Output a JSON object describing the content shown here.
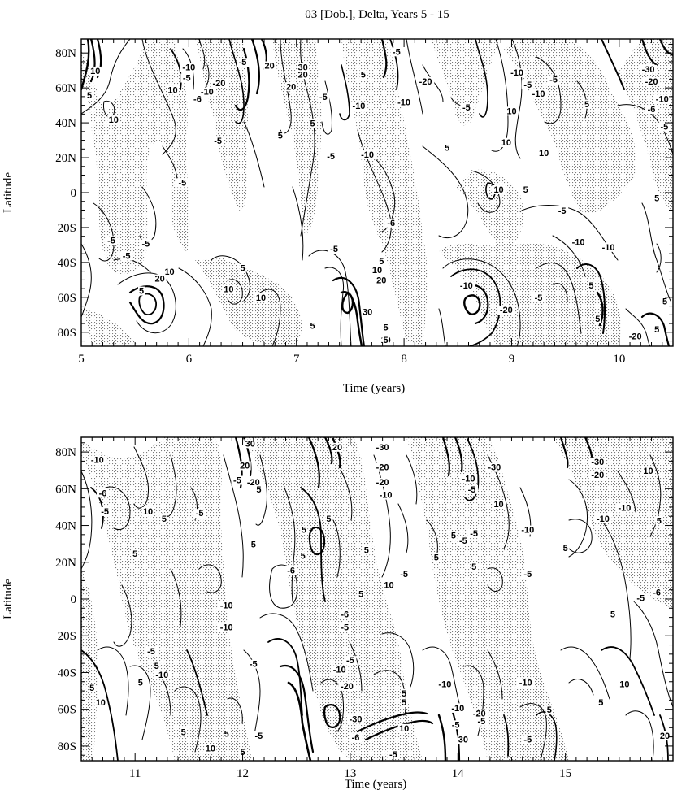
{
  "title": "03 [Dob.], Delta, Years 5 - 15",
  "colors": {
    "ink": "#000000",
    "stipple": "#9a9a9a",
    "background": "#ffffff"
  },
  "chart_data": [
    {
      "type": "contour",
      "xlabel": "Time (years)",
      "ylabel": "Latitude",
      "xlim": [
        5,
        10.5
      ],
      "ylim": [
        -88,
        88
      ],
      "x_ticks": [
        {
          "value": 5,
          "label": "5"
        },
        {
          "value": 6,
          "label": "6"
        },
        {
          "value": 7,
          "label": "7"
        },
        {
          "value": 8,
          "label": "8"
        },
        {
          "value": 9,
          "label": "9"
        },
        {
          "value": 10,
          "label": "10"
        }
      ],
      "y_ticks": [
        {
          "value": 80,
          "label": "80N"
        },
        {
          "value": 60,
          "label": "60N"
        },
        {
          "value": 40,
          "label": "40N"
        },
        {
          "value": 20,
          "label": "20N"
        },
        {
          "value": 0,
          "label": "0"
        },
        {
          "value": -20,
          "label": "20S"
        },
        {
          "value": -40,
          "label": "40S"
        },
        {
          "value": -60,
          "label": "60S"
        },
        {
          "value": -80,
          "label": "80S"
        }
      ],
      "contour_levels": [
        -30,
        -20,
        -10,
        -5,
        5,
        10,
        20,
        30
      ],
      "shading": "stippled where negative",
      "contour_labels": [
        {
          "x": 5.13,
          "y": 68,
          "label": "10"
        },
        {
          "x": 5.06,
          "y": 54,
          "label": "5"
        },
        {
          "x": 5.3,
          "y": 40,
          "label": "10"
        },
        {
          "x": 6.0,
          "y": 70,
          "label": "-10"
        },
        {
          "x": 5.98,
          "y": 64,
          "label": "-5"
        },
        {
          "x": 6.28,
          "y": 61,
          "label": "-20"
        },
        {
          "x": 6.17,
          "y": 56,
          "label": "-10"
        },
        {
          "x": 6.08,
          "y": 52,
          "label": "-6"
        },
        {
          "x": 5.85,
          "y": 57,
          "label": "10"
        },
        {
          "x": 6.5,
          "y": 73,
          "label": "-5"
        },
        {
          "x": 6.75,
          "y": 71,
          "label": "20"
        },
        {
          "x": 7.06,
          "y": 70,
          "label": "30"
        },
        {
          "x": 7.06,
          "y": 66,
          "label": "20"
        },
        {
          "x": 6.95,
          "y": 59,
          "label": "20"
        },
        {
          "x": 7.25,
          "y": 53,
          "label": "-5"
        },
        {
          "x": 7.15,
          "y": 38,
          "label": "5"
        },
        {
          "x": 7.62,
          "y": 66,
          "label": "5"
        },
        {
          "x": 7.58,
          "y": 48,
          "label": "-10"
        },
        {
          "x": 7.93,
          "y": 79,
          "label": "-5"
        },
        {
          "x": 8.2,
          "y": 62,
          "label": "-20"
        },
        {
          "x": 8.58,
          "y": 47,
          "label": "-5"
        },
        {
          "x": 8.0,
          "y": 50,
          "label": "-10"
        },
        {
          "x": 6.27,
          "y": 28,
          "label": "-5"
        },
        {
          "x": 6.85,
          "y": 31,
          "label": "5"
        },
        {
          "x": 7.32,
          "y": 19,
          "label": "-5"
        },
        {
          "x": 7.66,
          "y": 20,
          "label": "-10"
        },
        {
          "x": 5.94,
          "y": 4,
          "label": "-5"
        },
        {
          "x": 9.05,
          "y": 67,
          "label": "-10"
        },
        {
          "x": 9.15,
          "y": 60,
          "label": "-5"
        },
        {
          "x": 9.39,
          "y": 63,
          "label": "-5"
        },
        {
          "x": 9.25,
          "y": 55,
          "label": "-10"
        },
        {
          "x": 9.0,
          "y": 45,
          "label": "10"
        },
        {
          "x": 8.95,
          "y": 27,
          "label": "10"
        },
        {
          "x": 9.3,
          "y": 21,
          "label": "10"
        },
        {
          "x": 9.7,
          "y": 49,
          "label": "5"
        },
        {
          "x": 10.27,
          "y": 69,
          "label": "-30"
        },
        {
          "x": 10.3,
          "y": 62,
          "label": "-20"
        },
        {
          "x": 10.4,
          "y": 52,
          "label": "-10"
        },
        {
          "x": 10.3,
          "y": 46,
          "label": "-6"
        },
        {
          "x": 10.42,
          "y": 36,
          "label": "-5"
        },
        {
          "x": 8.4,
          "y": 24,
          "label": "5"
        },
        {
          "x": 8.88,
          "y": 0,
          "label": "10"
        },
        {
          "x": 9.13,
          "y": 0,
          "label": "5"
        },
        {
          "x": 9.47,
          "y": -12,
          "label": "-5"
        },
        {
          "x": 9.62,
          "y": -30,
          "label": "-10"
        },
        {
          "x": 9.9,
          "y": -33,
          "label": "-10"
        },
        {
          "x": 10.35,
          "y": -5,
          "label": "5"
        },
        {
          "x": 5.28,
          "y": -29,
          "label": "-5"
        },
        {
          "x": 5.6,
          "y": -31,
          "label": "-5"
        },
        {
          "x": 5.42,
          "y": -38,
          "label": "-5"
        },
        {
          "x": 7.35,
          "y": -34,
          "label": "-5"
        },
        {
          "x": 7.88,
          "y": -19,
          "label": "-6"
        },
        {
          "x": 5.82,
          "y": -47,
          "label": "10"
        },
        {
          "x": 5.73,
          "y": -51,
          "label": "20"
        },
        {
          "x": 5.56,
          "y": -58,
          "label": "5"
        },
        {
          "x": 6.5,
          "y": -45,
          "label": "5"
        },
        {
          "x": 6.37,
          "y": -57,
          "label": "10"
        },
        {
          "x": 6.67,
          "y": -62,
          "label": "10"
        },
        {
          "x": 7.79,
          "y": -41,
          "label": "5"
        },
        {
          "x": 7.75,
          "y": -46,
          "label": "10"
        },
        {
          "x": 7.79,
          "y": -52,
          "label": "20"
        },
        {
          "x": 7.66,
          "y": -70,
          "label": "30"
        },
        {
          "x": 7.15,
          "y": -78,
          "label": "5"
        },
        {
          "x": 7.83,
          "y": -79,
          "label": "5"
        },
        {
          "x": 7.83,
          "y": -87,
          "label": "10"
        },
        {
          "x": 7.83,
          "y": -93,
          "label": "5"
        },
        {
          "x": 8.58,
          "y": -55,
          "label": "-10"
        },
        {
          "x": 8.95,
          "y": -69,
          "label": "-20"
        },
        {
          "x": 9.25,
          "y": -62,
          "label": "-5"
        },
        {
          "x": 9.74,
          "y": -55,
          "label": "5"
        },
        {
          "x": 9.8,
          "y": -74,
          "label": "5"
        },
        {
          "x": 10.15,
          "y": -84,
          "label": "-20"
        },
        {
          "x": 10.35,
          "y": -80,
          "label": "5"
        },
        {
          "x": 10.47,
          "y": -64,
          "label": "5"
        }
      ]
    },
    {
      "type": "contour",
      "xlabel": "Time (years)",
      "ylabel": "Latitude",
      "xlim": [
        10.5,
        16
      ],
      "ylim": [
        -88,
        88
      ],
      "x_ticks": [
        {
          "value": 11,
          "label": "11"
        },
        {
          "value": 12,
          "label": "12"
        },
        {
          "value": 13,
          "label": "13"
        },
        {
          "value": 14,
          "label": "14"
        },
        {
          "value": 15,
          "label": "15"
        }
      ],
      "y_ticks": [
        {
          "value": 80,
          "label": "80N"
        },
        {
          "value": 60,
          "label": "60N"
        },
        {
          "value": 40,
          "label": "40N"
        },
        {
          "value": 20,
          "label": "20N"
        },
        {
          "value": 0,
          "label": "0"
        },
        {
          "value": -20,
          "label": "20S"
        },
        {
          "value": -40,
          "label": "40S"
        },
        {
          "value": -60,
          "label": "60S"
        },
        {
          "value": -80,
          "label": "80S"
        }
      ],
      "contour_levels": [
        -30,
        -20,
        -10,
        -5,
        5,
        10,
        20,
        30
      ],
      "shading": "stippled where negative",
      "contour_labels": [
        {
          "x": 10.65,
          "y": 74,
          "label": "-10"
        },
        {
          "x": 10.7,
          "y": 56,
          "label": "-6"
        },
        {
          "x": 10.72,
          "y": 46,
          "label": "-5"
        },
        {
          "x": 11.12,
          "y": 46,
          "label": "10"
        },
        {
          "x": 11.27,
          "y": 42,
          "label": "5"
        },
        {
          "x": 11.6,
          "y": 45,
          "label": "-5"
        },
        {
          "x": 12.07,
          "y": 83,
          "label": "30"
        },
        {
          "x": 12.02,
          "y": 71,
          "label": "20"
        },
        {
          "x": 11.95,
          "y": 63,
          "label": "-5"
        },
        {
          "x": 12.1,
          "y": 62,
          "label": "-20"
        },
        {
          "x": 12.15,
          "y": 58,
          "label": "5"
        },
        {
          "x": 12.88,
          "y": 81,
          "label": "20"
        },
        {
          "x": 13.3,
          "y": 81,
          "label": "-30"
        },
        {
          "x": 13.3,
          "y": 70,
          "label": "-20"
        },
        {
          "x": 13.3,
          "y": 62,
          "label": "-20"
        },
        {
          "x": 13.33,
          "y": 55,
          "label": "-10"
        },
        {
          "x": 12.57,
          "y": 36,
          "label": "5"
        },
        {
          "x": 11.0,
          "y": 23,
          "label": "5"
        },
        {
          "x": 12.1,
          "y": 28,
          "label": "5"
        },
        {
          "x": 12.45,
          "y": 14,
          "label": "-6"
        },
        {
          "x": 12.56,
          "y": 22,
          "label": "5"
        },
        {
          "x": 12.8,
          "y": 42,
          "label": "5"
        },
        {
          "x": 13.15,
          "y": 25,
          "label": "5"
        },
        {
          "x": 13.5,
          "y": 12,
          "label": "-5"
        },
        {
          "x": 14.1,
          "y": 64,
          "label": "-10"
        },
        {
          "x": 14.13,
          "y": 58,
          "label": "-5"
        },
        {
          "x": 14.34,
          "y": 70,
          "label": "-30"
        },
        {
          "x": 14.38,
          "y": 50,
          "label": "10"
        },
        {
          "x": 13.96,
          "y": 33,
          "label": "5"
        },
        {
          "x": 14.05,
          "y": 30,
          "label": "-5"
        },
        {
          "x": 14.15,
          "y": 34,
          "label": "-5"
        },
        {
          "x": 13.8,
          "y": 21,
          "label": "5"
        },
        {
          "x": 14.15,
          "y": 16,
          "label": "5"
        },
        {
          "x": 14.65,
          "y": 36,
          "label": "-10"
        },
        {
          "x": 14.65,
          "y": 12,
          "label": "-5"
        },
        {
          "x": 15.3,
          "y": 73,
          "label": "-30"
        },
        {
          "x": 15.3,
          "y": 66,
          "label": "-20"
        },
        {
          "x": 15.77,
          "y": 68,
          "label": "10"
        },
        {
          "x": 15.55,
          "y": 48,
          "label": "-10"
        },
        {
          "x": 15.35,
          "y": 42,
          "label": "-10"
        },
        {
          "x": 15.87,
          "y": 41,
          "label": "5"
        },
        {
          "x": 15.0,
          "y": 26,
          "label": "5"
        },
        {
          "x": 15.7,
          "y": -1,
          "label": "-5"
        },
        {
          "x": 15.85,
          "y": 2,
          "label": "-6"
        },
        {
          "x": 15.44,
          "y": -10,
          "label": "5"
        },
        {
          "x": 11.85,
          "y": -5,
          "label": "-10"
        },
        {
          "x": 11.85,
          "y": -17,
          "label": "-10"
        },
        {
          "x": 11.15,
          "y": -30,
          "label": "-5"
        },
        {
          "x": 12.1,
          "y": -37,
          "label": "-5"
        },
        {
          "x": 12.95,
          "y": -10,
          "label": "-6"
        },
        {
          "x": 12.95,
          "y": -17,
          "label": "-5"
        },
        {
          "x": 13.0,
          "y": -35,
          "label": "-5"
        },
        {
          "x": 12.9,
          "y": -40,
          "label": "-10"
        },
        {
          "x": 12.97,
          "y": -49,
          "label": "-20"
        },
        {
          "x": 13.1,
          "y": 1,
          "label": "5"
        },
        {
          "x": 13.36,
          "y": 6,
          "label": "10"
        },
        {
          "x": 11.2,
          "y": -38,
          "label": "5"
        },
        {
          "x": 11.25,
          "y": -43,
          "label": "-10"
        },
        {
          "x": 10.6,
          "y": -50,
          "label": "5"
        },
        {
          "x": 10.68,
          "y": -58,
          "label": "10"
        },
        {
          "x": 11.05,
          "y": -47,
          "label": "5"
        },
        {
          "x": 13.5,
          "y": -53,
          "label": "5"
        },
        {
          "x": 13.5,
          "y": -58,
          "label": "5"
        },
        {
          "x": 13.5,
          "y": -72,
          "label": "10"
        },
        {
          "x": 13.05,
          "y": -77,
          "label": "-6"
        },
        {
          "x": 13.4,
          "y": -87,
          "label": "-5"
        },
        {
          "x": 13.05,
          "y": -67,
          "label": "-30"
        },
        {
          "x": 13.88,
          "y": -48,
          "label": "-10"
        },
        {
          "x": 14.0,
          "y": -61,
          "label": "-10"
        },
        {
          "x": 14.2,
          "y": -64,
          "label": "-20"
        },
        {
          "x": 13.98,
          "y": -70,
          "label": "-5"
        },
        {
          "x": 14.05,
          "y": -78,
          "label": "30"
        },
        {
          "x": 14.63,
          "y": -47,
          "label": "-10"
        },
        {
          "x": 14.65,
          "y": -78,
          "label": "-5"
        },
        {
          "x": 14.22,
          "y": -68,
          "label": "-5"
        },
        {
          "x": 15.55,
          "y": -48,
          "label": "10"
        },
        {
          "x": 15.33,
          "y": -58,
          "label": "5"
        },
        {
          "x": 14.85,
          "y": -62,
          "label": "5"
        },
        {
          "x": 15.95,
          "y": -76,
          "label": "20"
        },
        {
          "x": 11.85,
          "y": -75,
          "label": "5"
        },
        {
          "x": 12.15,
          "y": -76,
          "label": "-5"
        },
        {
          "x": 11.7,
          "y": -83,
          "label": "10"
        },
        {
          "x": 11.45,
          "y": -74,
          "label": "5"
        },
        {
          "x": 12.0,
          "y": -85,
          "label": "5"
        }
      ]
    }
  ]
}
